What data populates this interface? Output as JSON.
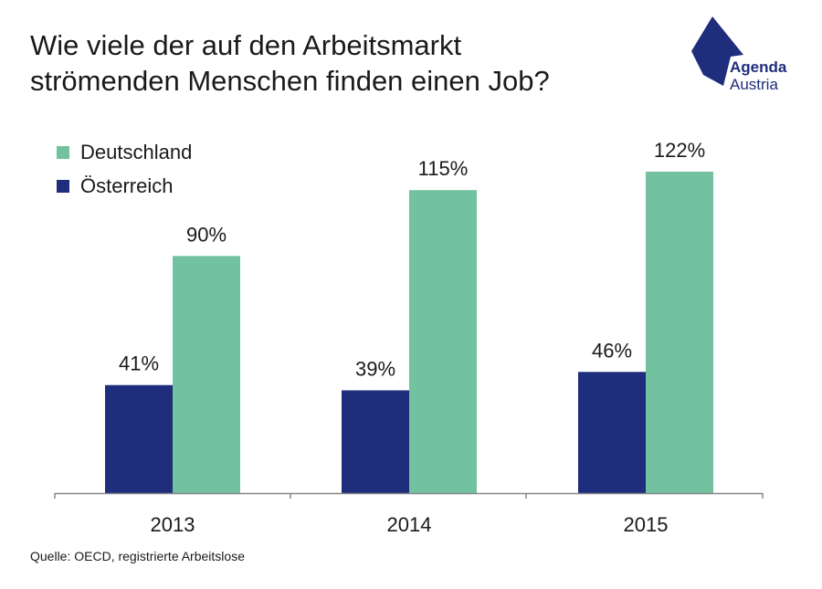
{
  "title_lines": [
    "Wie viele der auf den Arbeitsmarkt",
    "strömenden Menschen finden einen Job?"
  ],
  "logo": {
    "line1": "Agenda",
    "line2": "Austria",
    "color": "#1f2d7d"
  },
  "source": "Quelle: OECD, registrierte Arbeitslose",
  "legend": [
    {
      "label": "Deutschland",
      "color": "#72c29f"
    },
    {
      "label": "Österreich",
      "color": "#1f2d7d"
    }
  ],
  "chart_data": {
    "type": "bar",
    "title": "Wie viele der auf den Arbeitsmarkt strömenden Menschen finden einen Job?",
    "categories": [
      "2013",
      "2014",
      "2015"
    ],
    "series": [
      {
        "name": "Österreich",
        "values": [
          41,
          39,
          46
        ],
        "labels": [
          "41%",
          "39%",
          "46%"
        ],
        "color": "#1f2d7d"
      },
      {
        "name": "Deutschland",
        "values": [
          90,
          115,
          122
        ],
        "labels": [
          "90%",
          "115%",
          "122%"
        ],
        "color": "#72c29f"
      }
    ],
    "ylim": [
      0,
      122
    ],
    "grid": false,
    "legend_position": "top-left"
  }
}
